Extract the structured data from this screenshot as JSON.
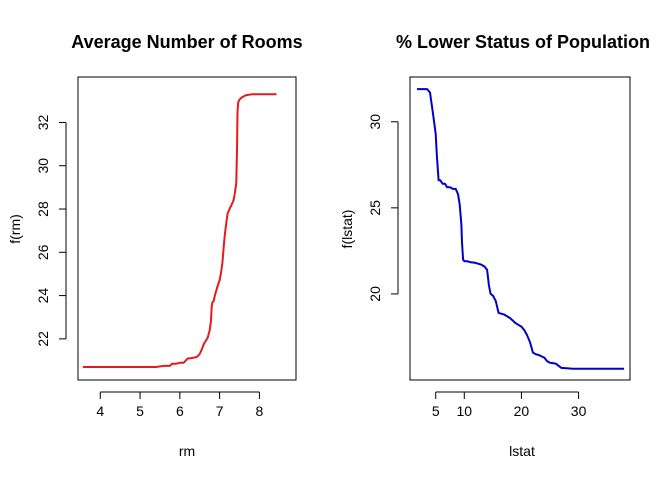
{
  "chart_data": [
    {
      "type": "line",
      "title": "Average Number of Rooms",
      "xlabel": "rm",
      "ylabel": "f(rm)",
      "xlim": [
        3.44,
        8.92
      ],
      "ylim": [
        20.1,
        34.1
      ],
      "xticks": [
        4,
        5,
        6,
        7,
        8
      ],
      "yticks": [
        22,
        24,
        26,
        28,
        30,
        32
      ],
      "grid": false,
      "color": "#e41a1c",
      "series": [
        {
          "x": [
            3.56,
            5.4,
            5.6,
            5.75,
            5.8,
            5.9,
            6.0,
            6.1,
            6.2,
            6.25,
            6.4,
            6.45,
            6.5,
            6.55,
            6.6,
            6.65,
            6.7,
            6.75,
            6.78,
            6.8,
            6.82,
            6.85,
            6.88,
            6.92,
            6.96,
            7.0,
            7.03,
            7.07,
            7.1,
            7.13,
            7.17,
            7.2,
            7.25,
            7.3,
            7.35,
            7.38,
            7.42,
            7.44,
            7.45,
            7.47,
            7.5,
            7.55,
            7.65,
            7.8,
            8.0,
            8.25,
            8.43
          ],
          "y": [
            20.7,
            20.7,
            20.75,
            20.75,
            20.85,
            20.85,
            20.9,
            20.9,
            21.1,
            21.1,
            21.15,
            21.2,
            21.3,
            21.5,
            21.75,
            21.9,
            22.05,
            22.4,
            22.8,
            23.5,
            23.7,
            23.75,
            24.0,
            24.25,
            24.5,
            24.7,
            25.0,
            25.5,
            26.2,
            26.8,
            27.4,
            27.8,
            28.0,
            28.2,
            28.4,
            28.7,
            29.2,
            31.0,
            32.5,
            32.95,
            33.05,
            33.15,
            33.25,
            33.3,
            33.3,
            33.3,
            33.3
          ]
        }
      ]
    },
    {
      "type": "line",
      "title": "% Lower Status of Population",
      "xlabel": "lstat",
      "ylabel": "f(lstat)",
      "xlim": [
        0.5,
        39.0
      ],
      "ylim": [
        15.0,
        32.6
      ],
      "xticks": [
        5,
        10,
        20,
        30
      ],
      "yticks": [
        20,
        25,
        30
      ],
      "grid": false,
      "color": "#0000cc",
      "series": [
        {
          "x": [
            1.73,
            3.5,
            4.0,
            4.3,
            4.6,
            5.0,
            5.2,
            5.5,
            5.8,
            6.2,
            6.6,
            7.0,
            7.5,
            8.0,
            8.5,
            8.9,
            9.2,
            9.5,
            9.6,
            9.8,
            10.0,
            10.5,
            11.0,
            12.0,
            13.0,
            13.5,
            14.0,
            14.3,
            14.6,
            15.0,
            15.5,
            16.0,
            17.0,
            18.0,
            19.0,
            20.0,
            20.5,
            21.0,
            21.5,
            22.0,
            22.5,
            23.0,
            24.0,
            24.5,
            25.0,
            26.0,
            27.0,
            29.0,
            32.0,
            35.0,
            37.97
          ],
          "y": [
            31.9,
            31.9,
            31.7,
            31.0,
            30.3,
            29.3,
            28.0,
            26.6,
            26.6,
            26.4,
            26.4,
            26.2,
            26.2,
            26.1,
            26.1,
            25.8,
            25.2,
            24.0,
            23.0,
            22.0,
            21.9,
            21.9,
            21.85,
            21.8,
            21.7,
            21.6,
            21.4,
            20.5,
            20.0,
            19.9,
            19.6,
            18.9,
            18.8,
            18.6,
            18.3,
            18.1,
            17.9,
            17.6,
            17.2,
            16.6,
            16.5,
            16.45,
            16.3,
            16.1,
            16.0,
            15.95,
            15.7,
            15.65,
            15.65,
            15.65,
            15.65
          ]
        }
      ]
    }
  ]
}
